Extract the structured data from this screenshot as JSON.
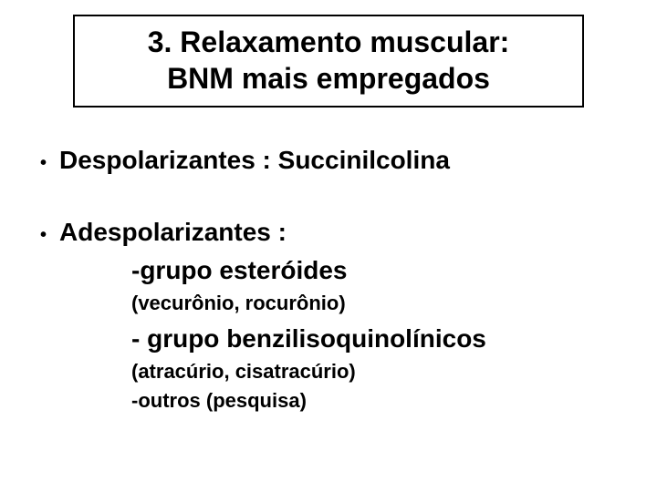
{
  "colors": {
    "background": "#ffffff",
    "text": "#000000",
    "border": "#000000"
  },
  "typography": {
    "family": "Arial",
    "title_size_pt": 24,
    "body_size_pt": 21,
    "paren_size_pt": 17,
    "weight": "bold"
  },
  "title": {
    "line1": "3. Relaxamento muscular:",
    "line2": "BNM mais empregados"
  },
  "items": [
    {
      "text": "Despolarizantes : Succinilcolina"
    },
    {
      "text": "Adespolarizantes :",
      "sublines": [
        {
          "kind": "bold",
          "text": "-grupo esteróides"
        },
        {
          "kind": "paren",
          "text": "(vecurônio, rocurônio)"
        },
        {
          "kind": "bold",
          "text": "- grupo benzilisoquinolínicos"
        },
        {
          "kind": "paren",
          "text": "(atracúrio, cisatracúrio)"
        },
        {
          "kind": "paren",
          "text": "-outros (pesquisa)"
        }
      ]
    }
  ]
}
